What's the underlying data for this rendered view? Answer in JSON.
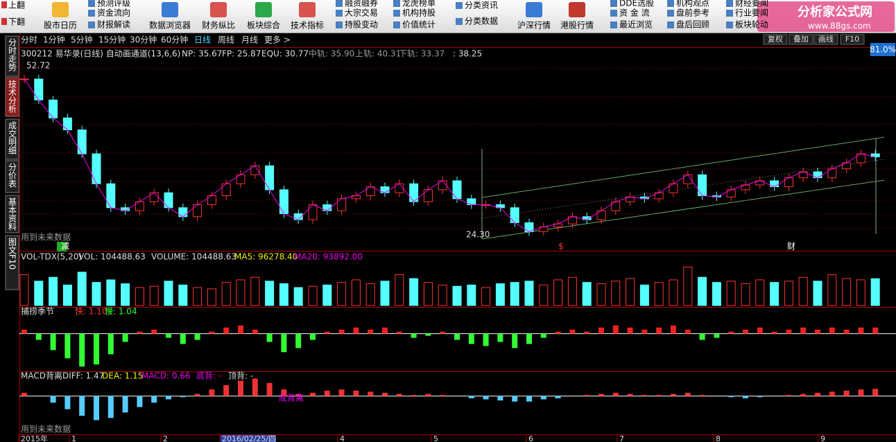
{
  "logo": {
    "title": "分析家公式网",
    "url": "www.88gs.com"
  },
  "toolbar": {
    "page": [
      "上翻",
      "下翻"
    ],
    "big": [
      "股市日历",
      "数据浏览器",
      "财务纵比",
      "板块综合",
      "技术指标",
      "沪深行情",
      "港股行情"
    ],
    "small": [
      "预测评级",
      "资金流向",
      "财报解读",
      "融资融券",
      "大宗交易",
      "持股变动",
      "龙虎榜单",
      "机构持股",
      "价值统计",
      "分类资讯",
      "分类数据",
      "DDE选股",
      "资 金 流",
      "最近浏览",
      "机构观点",
      "盘前参考",
      "盘后回顾",
      "财经要闻",
      "行业要闻",
      "板块轮动"
    ]
  },
  "periods": [
    "分时",
    "1分钟",
    "5分钟",
    "15分钟",
    "30分钟",
    "60分钟",
    "日线",
    "周线",
    "月线",
    "更多 >"
  ],
  "side_tabs": [
    "分时走势",
    "技术分析",
    "成交明细",
    "分价表",
    "基本资料",
    "图文F10"
  ],
  "right_buttons": [
    "复权",
    "叠加",
    "画线",
    "F10"
  ],
  "zoom": "81.0%",
  "price_header": [
    "300212 易华录(日线) 自动画通道(13,6,6)",
    "NP: 35.67",
    "FP: 25.87",
    "EQU: 30.77",
    "中轨: 35.90",
    "上轨: 40.31",
    "下轨: 33.37",
    ": 38.25"
  ],
  "volume_header": [
    "VOL-TDX(5,20)",
    "VOL: 104488.63",
    "VOLUME: 104488.63",
    "MA5: 96278.40",
    "MA20: 93892.00"
  ],
  "season_header": [
    "捕捞季节",
    "快: 1.10",
    "慢: 1.04"
  ],
  "macd_header": [
    "MACD背离",
    "DIFF: 1.47",
    "DEA: 1.15",
    "MACD: 0.66",
    "底背: -",
    "顶背: -"
  ],
  "annotations": [
    "52.72",
    "24.30",
    "用到未来数据",
    "减",
    "$",
    "财",
    "底背离",
    "用到未来数据"
  ],
  "x_axis": [
    "2015年",
    "1",
    "2",
    "2016/02/25/四",
    "4",
    "5",
    "6",
    "7",
    "8",
    "9"
  ],
  "price": {
    "ylim": [
      21.8,
      55.6
    ],
    "close": [
      50.5,
      47,
      44,
      42,
      38,
      33,
      29,
      28.5,
      30,
      31.5,
      29,
      27.5,
      29.5,
      31,
      33,
      34.5,
      36,
      32,
      28,
      27,
      29.5,
      28.5,
      30.5,
      31,
      32.5,
      31.5,
      33,
      30,
      32,
      33.5,
      30.5,
      29.5,
      29.5,
      29,
      26.5,
      25,
      25.8,
      26.3,
      27.5,
      27,
      28.5,
      30,
      30.8,
      30.5,
      31.5,
      33,
      34.5,
      31,
      30.8,
      32,
      32.8,
      33.5,
      32.5,
      34,
      35,
      34,
      35.5,
      36.5,
      38,
      37.5
    ]
  },
  "volume": {
    "ylim": [
      0,
      170000
    ],
    "values": [
      120000,
      95000,
      110000,
      80000,
      130000,
      90000,
      100000,
      85000,
      70000,
      75000,
      95000,
      80000,
      70000,
      65000,
      90000,
      100000,
      110000,
      95000,
      85000,
      70000,
      75000,
      80000,
      90000,
      100000,
      85000,
      95000,
      120000,
      105000,
      90000,
      80000,
      75000,
      80000,
      70000,
      85000,
      90000,
      95000,
      80000,
      100000,
      110000,
      90000,
      85000,
      95000,
      105000,
      80000,
      90000,
      100000,
      150000,
      110000,
      90000,
      95000,
      85000,
      100000,
      90000,
      95000,
      110000,
      95000,
      120000,
      105000,
      100000,
      104488.63
    ]
  },
  "season": {
    "ylim": [
      -1.8,
      0.9
    ],
    "values": [
      0.2,
      -0.3,
      -0.8,
      -1.2,
      -1.6,
      -1.5,
      -1.0,
      -0.4,
      0.1,
      0.2,
      -0.2,
      -0.5,
      -0.3,
      0.1,
      0.3,
      0.4,
      0.2,
      -0.4,
      -0.9,
      -0.7,
      -0.3,
      0.1,
      0.2,
      0.3,
      0.2,
      0.3,
      0.1,
      -0.2,
      -0.1,
      0.1,
      -0.3,
      -0.5,
      -0.6,
      -0.4,
      -0.7,
      -0.5,
      -0.2,
      0.1,
      0.2,
      0.1,
      0.3,
      0.4,
      0.3,
      0.2,
      0.3,
      0.4,
      0.2,
      -0.3,
      -0.2,
      0.1,
      0.2,
      0.3,
      0.1,
      0.2,
      0.3,
      0.2,
      0.3,
      0.2,
      0.3,
      0.3
    ]
  },
  "macd": {
    "ylim": [
      -3.5,
      1.5
    ],
    "values": [
      0.3,
      0.0,
      -0.6,
      -1.2,
      -1.8,
      -2.2,
      -2.0,
      -1.5,
      -1.0,
      -0.6,
      -0.3,
      -0.1,
      0.2,
      0.6,
      1.0,
      1.4,
      1.6,
      1.2,
      0.6,
      0.2,
      0.3,
      0.5,
      0.6,
      0.5,
      0.4,
      0.3,
      0.2,
      0.1,
      0.2,
      0.1,
      0.0,
      -0.2,
      -0.3,
      -0.4,
      -0.5,
      -0.5,
      -0.3,
      -0.2,
      0.0,
      0.1,
      0.2,
      0.3,
      0.2,
      0.1,
      0.1,
      0.2,
      0.3,
      0.1,
      0.0,
      -0.1,
      -0.2,
      -0.1,
      0.0,
      0.1,
      0.2,
      0.3,
      0.4,
      0.5,
      0.6,
      0.66
    ]
  }
}
